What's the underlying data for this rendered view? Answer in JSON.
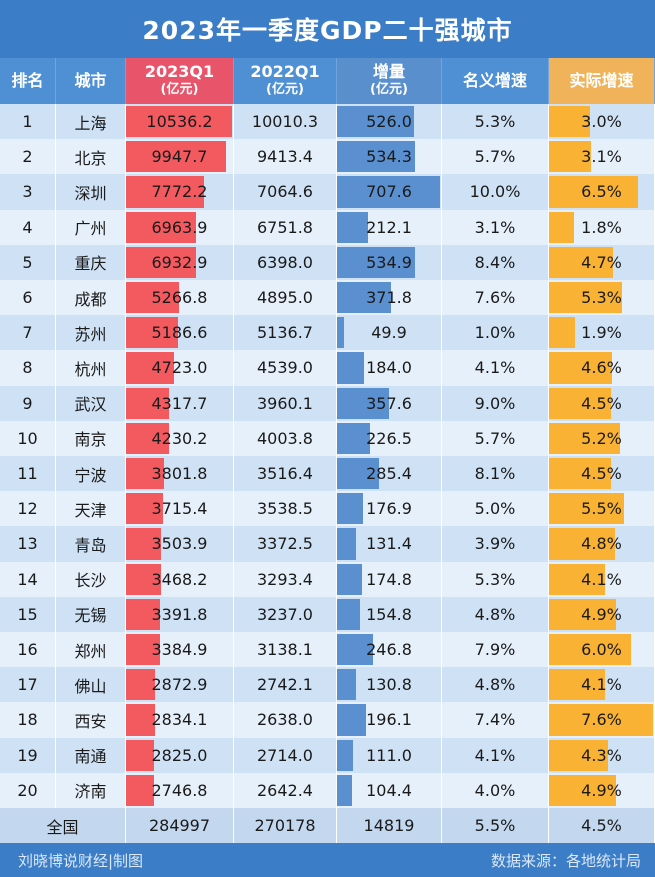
{
  "title": "2023年一季度GDP二十强城市",
  "headers": {
    "rank": "排名",
    "city": "城市",
    "q2023": "2023Q1",
    "q2023_unit": "(亿元)",
    "q2022": "2022Q1",
    "q2022_unit": "(亿元)",
    "increment": "增量",
    "increment_unit": "(亿元)",
    "nominal": "名义增速",
    "real": "实际增速"
  },
  "colors": {
    "title_bg": "#3b7dc6",
    "bar_2023": "#f25a60",
    "bar_increment": "#5a8fd0",
    "bar_real": "#f9b233"
  },
  "chart_data": {
    "type": "table",
    "columns": [
      "排名",
      "城市",
      "2023Q1(亿元)",
      "2022Q1(亿元)",
      "增量(亿元)",
      "名义增速",
      "实际增速"
    ],
    "rows": [
      {
        "rank": "1",
        "city": "上海",
        "q2023": "10536.2",
        "q2022": "10010.3",
        "inc": "526.0",
        "nominal": "5.3%",
        "real": "3.0%"
      },
      {
        "rank": "2",
        "city": "北京",
        "q2023": "9947.7",
        "q2022": "9413.4",
        "inc": "534.3",
        "nominal": "5.7%",
        "real": "3.1%"
      },
      {
        "rank": "3",
        "city": "深圳",
        "q2023": "7772.2",
        "q2022": "7064.6",
        "inc": "707.6",
        "nominal": "10.0%",
        "real": "6.5%"
      },
      {
        "rank": "4",
        "city": "广州",
        "q2023": "6963.9",
        "q2022": "6751.8",
        "inc": "212.1",
        "nominal": "3.1%",
        "real": "1.8%"
      },
      {
        "rank": "5",
        "city": "重庆",
        "q2023": "6932.9",
        "q2022": "6398.0",
        "inc": "534.9",
        "nominal": "8.4%",
        "real": "4.7%"
      },
      {
        "rank": "6",
        "city": "成都",
        "q2023": "5266.8",
        "q2022": "4895.0",
        "inc": "371.8",
        "nominal": "7.6%",
        "real": "5.3%"
      },
      {
        "rank": "7",
        "city": "苏州",
        "q2023": "5186.6",
        "q2022": "5136.7",
        "inc": "49.9",
        "nominal": "1.0%",
        "real": "1.9%"
      },
      {
        "rank": "8",
        "city": "杭州",
        "q2023": "4723.0",
        "q2022": "4539.0",
        "inc": "184.0",
        "nominal": "4.1%",
        "real": "4.6%"
      },
      {
        "rank": "9",
        "city": "武汉",
        "q2023": "4317.7",
        "q2022": "3960.1",
        "inc": "357.6",
        "nominal": "9.0%",
        "real": "4.5%"
      },
      {
        "rank": "10",
        "city": "南京",
        "q2023": "4230.2",
        "q2022": "4003.8",
        "inc": "226.5",
        "nominal": "5.7%",
        "real": "5.2%"
      },
      {
        "rank": "11",
        "city": "宁波",
        "q2023": "3801.8",
        "q2022": "3516.4",
        "inc": "285.4",
        "nominal": "8.1%",
        "real": "4.5%"
      },
      {
        "rank": "12",
        "city": "天津",
        "q2023": "3715.4",
        "q2022": "3538.5",
        "inc": "176.9",
        "nominal": "5.0%",
        "real": "5.5%"
      },
      {
        "rank": "13",
        "city": "青岛",
        "q2023": "3503.9",
        "q2022": "3372.5",
        "inc": "131.4",
        "nominal": "3.9%",
        "real": "4.8%"
      },
      {
        "rank": "14",
        "city": "长沙",
        "q2023": "3468.2",
        "q2022": "3293.4",
        "inc": "174.8",
        "nominal": "5.3%",
        "real": "4.1%"
      },
      {
        "rank": "15",
        "city": "无锡",
        "q2023": "3391.8",
        "q2022": "3237.0",
        "inc": "154.8",
        "nominal": "4.8%",
        "real": "4.9%"
      },
      {
        "rank": "16",
        "city": "郑州",
        "q2023": "3384.9",
        "q2022": "3138.1",
        "inc": "246.8",
        "nominal": "7.9%",
        "real": "6.0%"
      },
      {
        "rank": "17",
        "city": "佛山",
        "q2023": "2872.9",
        "q2022": "2742.1",
        "inc": "130.8",
        "nominal": "4.8%",
        "real": "4.1%"
      },
      {
        "rank": "18",
        "city": "西安",
        "q2023": "2834.1",
        "q2022": "2638.0",
        "inc": "196.1",
        "nominal": "7.4%",
        "real": "7.6%"
      },
      {
        "rank": "19",
        "city": "南通",
        "q2023": "2825.0",
        "q2022": "2714.0",
        "inc": "111.0",
        "nominal": "4.1%",
        "real": "4.3%"
      },
      {
        "rank": "20",
        "city": "济南",
        "q2023": "2746.8",
        "q2022": "2642.4",
        "inc": "104.4",
        "nominal": "4.0%",
        "real": "4.9%"
      }
    ],
    "total": {
      "label": "全国",
      "q2023": "284997",
      "q2022": "270178",
      "inc": "14819",
      "nominal": "5.5%",
      "real": "4.5%"
    }
  },
  "footer": {
    "left": "刘晓博说财经|制图",
    "right": "数据来源：各地统计局"
  }
}
